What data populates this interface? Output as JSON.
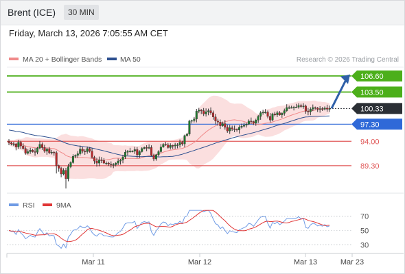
{
  "header": {
    "title": "Brent (ICE)",
    "timeframe": "30 MIN"
  },
  "timestamp": "Friday, March 13, 2026 7:05:55 AM CET",
  "attribution": "Research © 2026 Trading Central",
  "colors": {
    "green": "#4caf1a",
    "blue": "#2f69d8",
    "red": "#e05757",
    "dark": "#2b2f35",
    "band_fill": "#f8c9c9",
    "ma20": "#f08a8a",
    "ma50": "#2d4f8f",
    "rsi": "#6f9be5",
    "rsi_ma": "#e03535",
    "arrow": "#2e5fa8"
  },
  "legend": [
    {
      "label": "MA 20 + Bollinger Bands",
      "color": "#f08a8a"
    },
    {
      "label": "MA 50",
      "color": "#2d4f8f"
    }
  ],
  "rsi_legend": [
    {
      "label": "RSI",
      "color": "#6f9be5"
    },
    {
      "label": "9MA",
      "color": "#e03535"
    }
  ],
  "chart_data": [
    {
      "type": "candlestick",
      "instrument": "Brent (ICE)",
      "interval": "30 MIN",
      "ylim": [
        84,
        108.3
      ],
      "last_price": 100.33,
      "levels": [
        {
          "label": "106.60",
          "value": 106.6,
          "kind": "resistance",
          "color": "#4caf1a",
          "tag": "filled"
        },
        {
          "label": "103.50",
          "value": 103.5,
          "kind": "resistance",
          "color": "#4caf1a",
          "tag": "filled"
        },
        {
          "label": "100.33",
          "value": 100.33,
          "kind": "last",
          "color": "#2b2f35",
          "tag": "filled"
        },
        {
          "label": "97.30",
          "value": 97.3,
          "kind": "pivot",
          "color": "#2f69d8",
          "tag": "filled"
        },
        {
          "label": "94.00",
          "value": 94.0,
          "kind": "support",
          "color": "#e05757",
          "tag": "text"
        },
        {
          "label": "89.30",
          "value": 89.3,
          "kind": "support",
          "color": "#e05757",
          "tag": "text"
        }
      ],
      "x_ticks": [
        "Mar 11",
        "Mar 12",
        "Mar 13",
        "Mar 23"
      ],
      "close": [
        93.7,
        93.5,
        93.5,
        92.9,
        93.8,
        93.1,
        92.6,
        91.7,
        92.0,
        92.3,
        92.0,
        91.9,
        92.7,
        93.4,
        92.8,
        92.1,
        92.5,
        91.8,
        91.9,
        91.8,
        89.3,
        88.8,
        87.7,
        88.4,
        86.8,
        89.1,
        89.9,
        91.1,
        91.3,
        91.6,
        92.5,
        92.1,
        92.0,
        92.6,
        92.1,
        90.9,
        90.2,
        89.8,
        90.4,
        90.3,
        89.8,
        89.8,
        89.6,
        89.5,
        89.5,
        89.8,
        90.2,
        90.4,
        91.0,
        91.9,
        92.1,
        92.1,
        92.1,
        92.4,
        91.4,
        92.0,
        92.6,
        92.8,
        92.7,
        92.8,
        91.3,
        90.6,
        91.4,
        92.0,
        92.9,
        93.4,
        93.3,
        92.8,
        93.2,
        93.1,
        93.3,
        93.3,
        93.8,
        93.5,
        95.1,
        95.4,
        97.9,
        98.0,
        98.3,
        99.8,
        100.0,
        99.9,
        99.3,
        99.7,
        99.9,
        99.5,
        98.7,
        97.9,
        97.7,
        97.0,
        97.4,
        96.7,
        96.0,
        96.6,
        96.4,
        96.3,
        96.2,
        96.7,
        96.9,
        97.1,
        97.3,
        97.9,
        97.8,
        97.5,
        98.1,
        98.8,
        99.5,
        99.6,
        99.6,
        98.8,
        98.1,
        99.3,
        99.1,
        99.5,
        99.1,
        99.4,
        99.9,
        100.5,
        100.5,
        100.5,
        100.6,
        100.6,
        100.9,
        100.7,
        100.8,
        99.8,
        99.7,
        100.2,
        100.5,
        100.4,
        100.2,
        100.3,
        100.2,
        100.4,
        100.2,
        100.3
      ],
      "rsi_ylim": [
        20,
        80
      ],
      "rsi_ticks": [
        70,
        50,
        30
      ],
      "rsi_levels": [
        70,
        30
      ]
    }
  ]
}
